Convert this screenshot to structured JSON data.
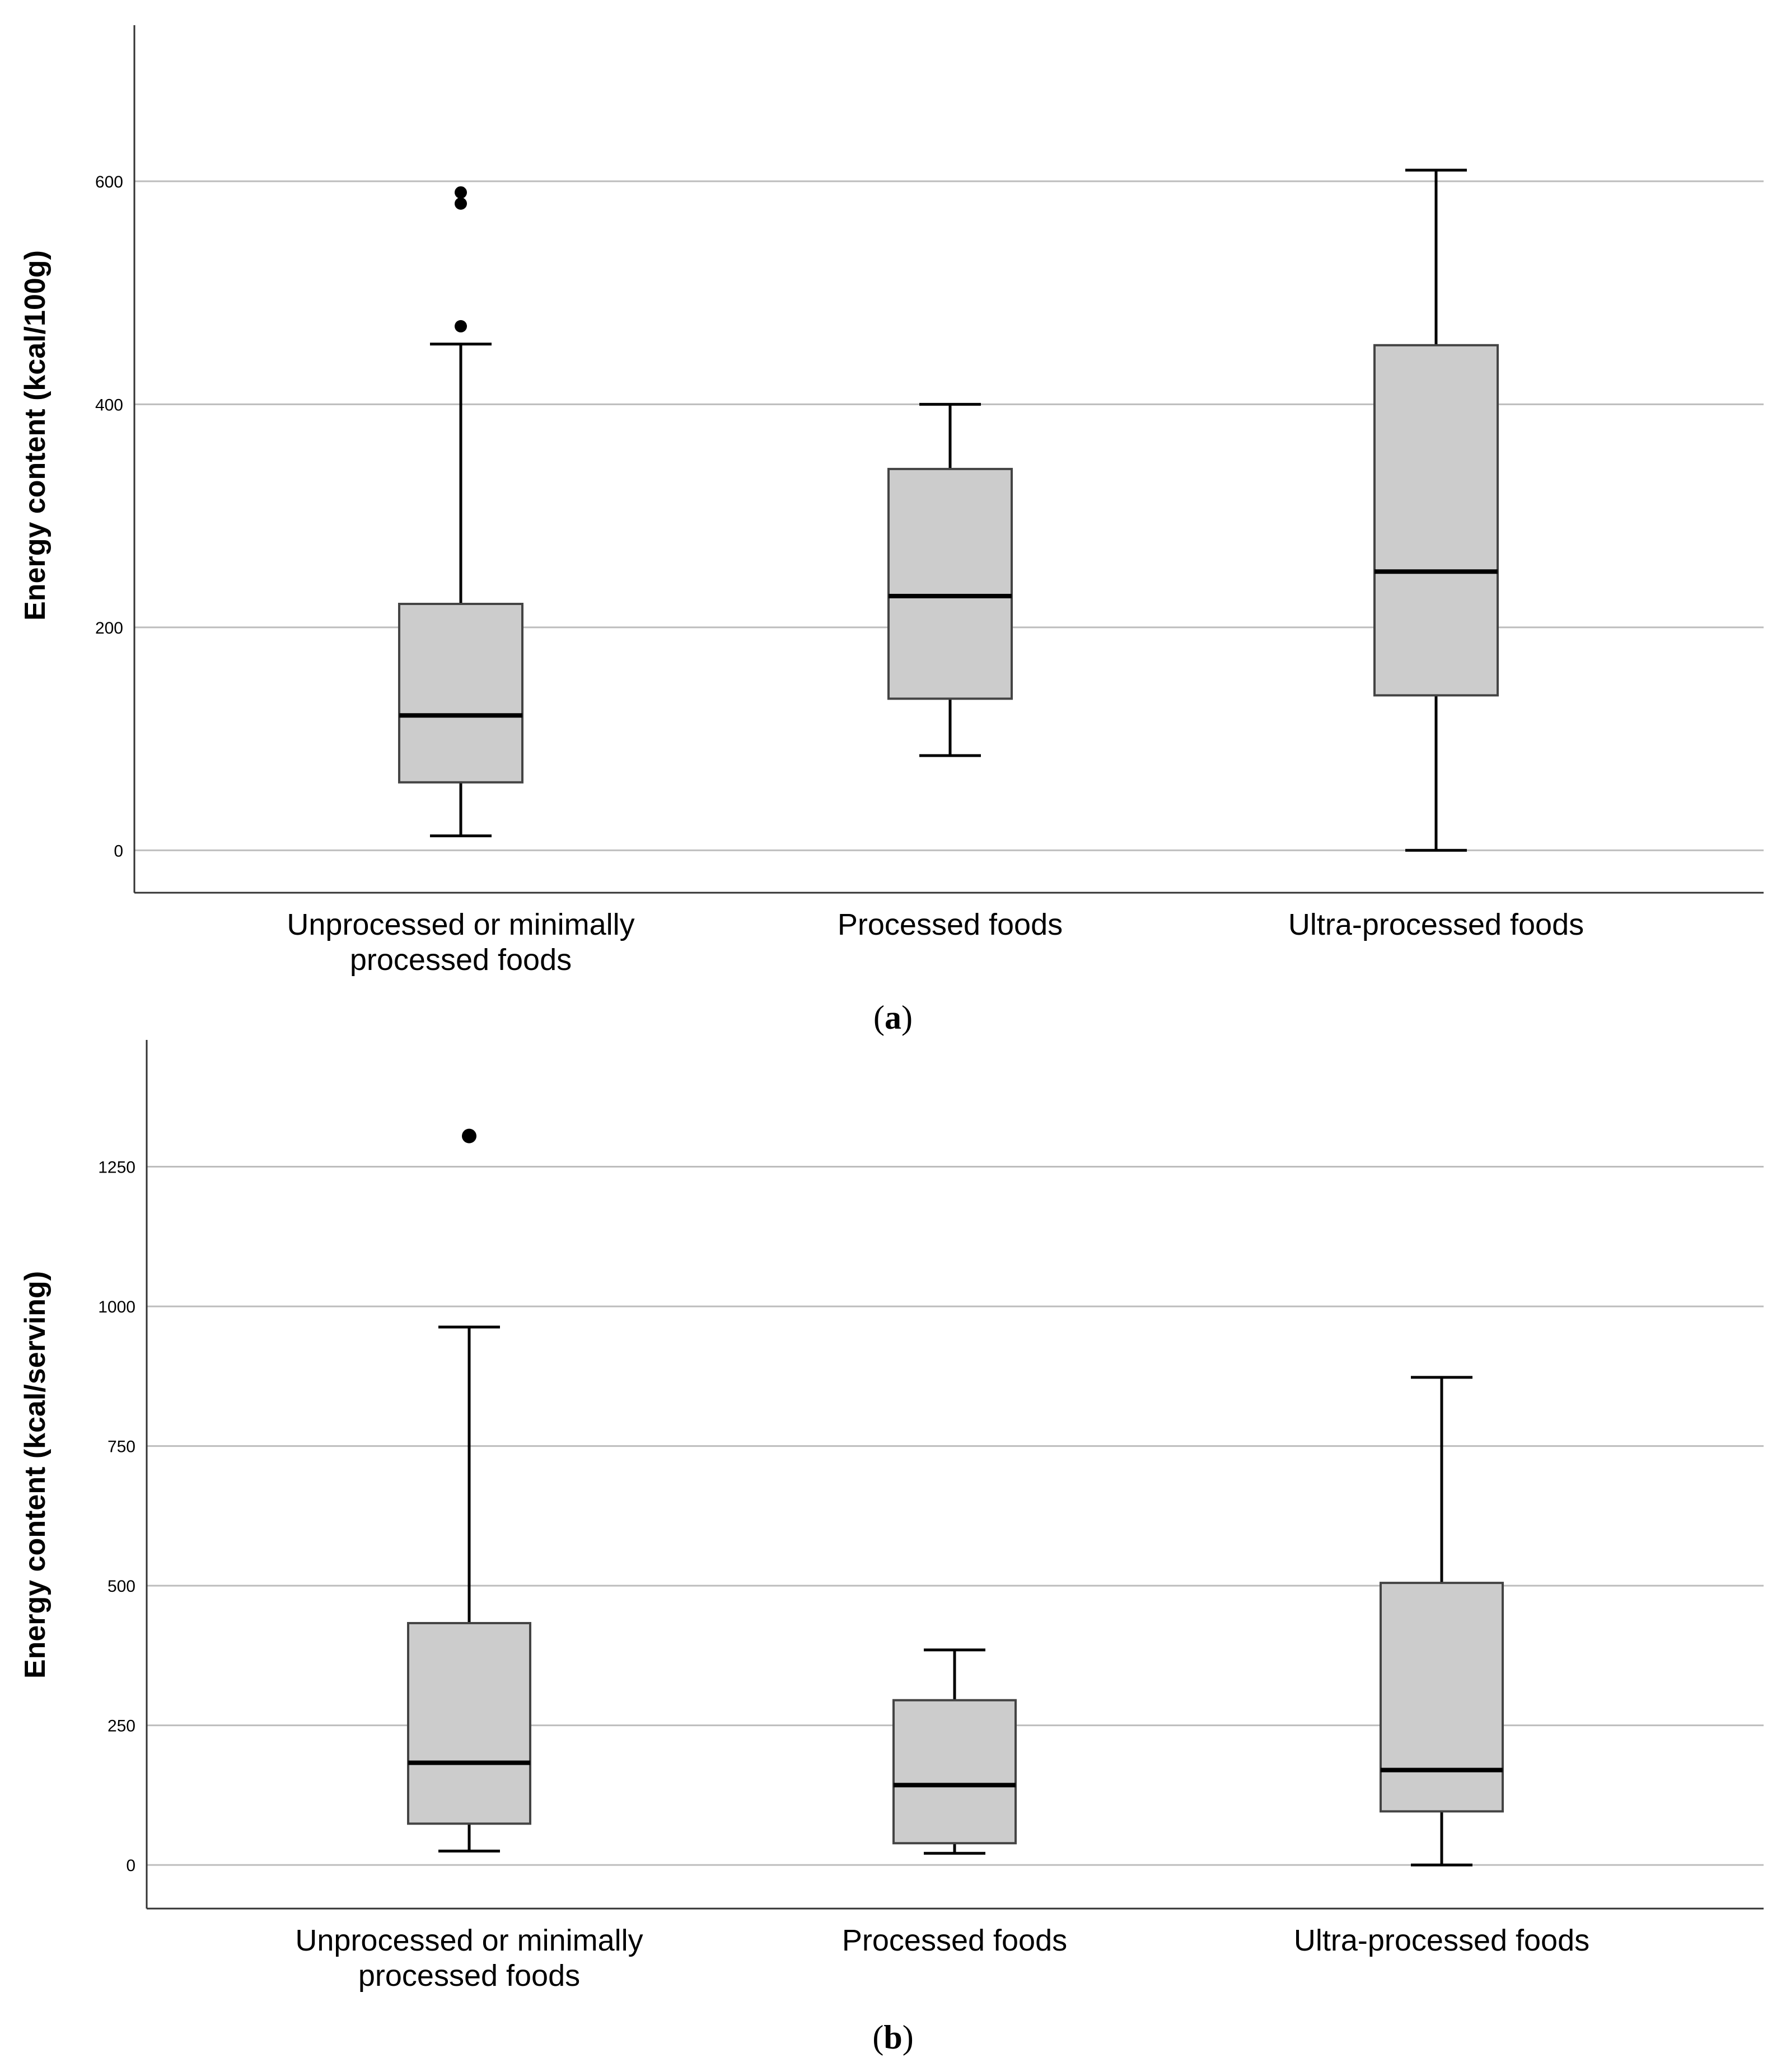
{
  "chart_data": [
    {
      "type": "boxplot",
      "panel_label": "a",
      "ylabel": "Energy content (kcal/100g)",
      "ylim": [
        -38,
        740
      ],
      "yticks": [
        0,
        200,
        400,
        600
      ],
      "ytick_labels": [
        "0",
        "200",
        "400",
        "600"
      ],
      "grid": true,
      "categories": [
        {
          "line1": "Unprocessed or minimally",
          "line2": "processed foods"
        },
        {
          "line1": "Processed foods",
          "line2": ""
        },
        {
          "line1": "Ultra-processed foods",
          "line2": ""
        }
      ],
      "boxes": [
        {
          "whisker_low": 13,
          "q1": 61,
          "median": 121,
          "q3": 221,
          "whisker_high": 454,
          "outliers": [
            470,
            580,
            590
          ]
        },
        {
          "whisker_low": 85,
          "q1": 136,
          "median": 228,
          "q3": 342,
          "whisker_high": 400,
          "outliers": []
        },
        {
          "whisker_low": 0,
          "q1": 139,
          "median": 250,
          "q3": 453,
          "whisker_high": 610,
          "outliers": []
        }
      ]
    },
    {
      "type": "boxplot",
      "panel_label": "b",
      "ylabel": "Energy content (kcal/serving)",
      "ylim": [
        -78,
        1477
      ],
      "yticks": [
        0,
        250,
        500,
        750,
        1000,
        1250
      ],
      "ytick_labels": [
        "0",
        "250",
        "500",
        "750",
        "1000",
        "1250"
      ],
      "grid": true,
      "categories": [
        {
          "line1": "Unprocessed or minimally",
          "line2": "processed foods"
        },
        {
          "line1": "Processed foods",
          "line2": ""
        },
        {
          "line1": "Ultra-processed foods",
          "line2": ""
        }
      ],
      "boxes": [
        {
          "whisker_low": 25,
          "q1": 74,
          "median": 183,
          "q3": 433,
          "whisker_high": 963,
          "outliers": [
            1305
          ]
        },
        {
          "whisker_low": 21,
          "q1": 39,
          "median": 143,
          "q3": 295,
          "whisker_high": 385,
          "outliers": []
        },
        {
          "whisker_low": 0,
          "q1": 96,
          "median": 170,
          "q3": 505,
          "whisker_high": 873,
          "outliers": []
        }
      ]
    }
  ]
}
